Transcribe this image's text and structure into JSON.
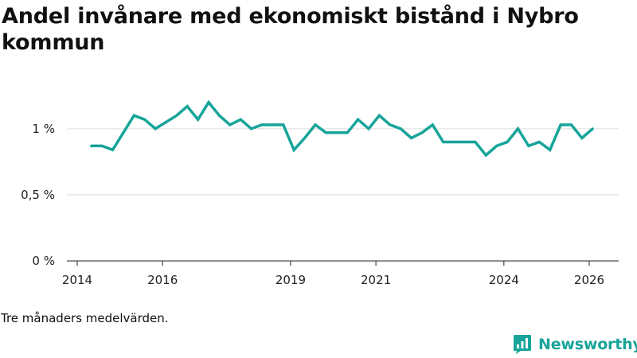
{
  "chart_data": {
    "type": "line",
    "title": "Andel invånare med ekonomiskt bistånd i Nybro kommun",
    "xlabel": "",
    "ylabel": "",
    "ylim": [
      0,
      1.3
    ],
    "xlim": [
      2014,
      2026.4
    ],
    "y_ticks": [
      {
        "value": 0,
        "label": "0 %"
      },
      {
        "value": 0.5,
        "label": "0,5 %"
      },
      {
        "value": 1,
        "label": "1 %"
      }
    ],
    "x_ticks": [
      {
        "value": 2014,
        "label": "2014"
      },
      {
        "value": 2016,
        "label": "2016"
      },
      {
        "value": 2019,
        "label": "2019"
      },
      {
        "value": 2021,
        "label": "2021"
      },
      {
        "value": 2024,
        "label": "2024"
      },
      {
        "value": 2026,
        "label": "2026"
      }
    ],
    "grid": true,
    "color": "#17a49a",
    "series": [
      {
        "name": "Andel invånare med ekonomiskt bistånd",
        "x": [
          2014.33,
          2014.58,
          2014.83,
          2015.08,
          2015.33,
          2015.58,
          2015.83,
          2016.08,
          2016.33,
          2016.58,
          2016.83,
          2017.08,
          2017.33,
          2017.58,
          2017.83,
          2018.08,
          2018.33,
          2018.58,
          2018.83,
          2019.08,
          2019.33,
          2019.58,
          2019.83,
          2020.08,
          2020.33,
          2020.58,
          2020.83,
          2021.08,
          2021.33,
          2021.58,
          2021.83,
          2022.08,
          2022.33,
          2022.58,
          2022.83,
          2023.08,
          2023.33,
          2023.58,
          2023.83,
          2024.08,
          2024.33,
          2024.58,
          2024.83,
          2025.08,
          2025.33,
          2025.58,
          2025.83,
          2026.08
        ],
        "values": [
          0.87,
          0.87,
          0.84,
          0.97,
          1.1,
          1.07,
          1.0,
          1.05,
          1.1,
          1.17,
          1.07,
          1.2,
          1.1,
          1.03,
          1.07,
          1.0,
          1.03,
          1.03,
          1.03,
          0.84,
          0.93,
          1.03,
          0.97,
          0.97,
          0.97,
          1.07,
          1.0,
          1.1,
          1.03,
          1.0,
          0.93,
          0.97,
          1.03,
          0.9,
          0.9,
          0.9,
          0.9,
          0.8,
          0.87,
          0.9,
          1.0,
          0.87,
          0.9,
          0.84,
          1.03,
          1.03,
          0.93,
          1.0
        ]
      }
    ]
  },
  "footnote": "Tre månaders medelvärden.",
  "brand": {
    "name": "Newsworthy",
    "icon": "newsworthy-logo-icon",
    "color": "#17a49a"
  }
}
